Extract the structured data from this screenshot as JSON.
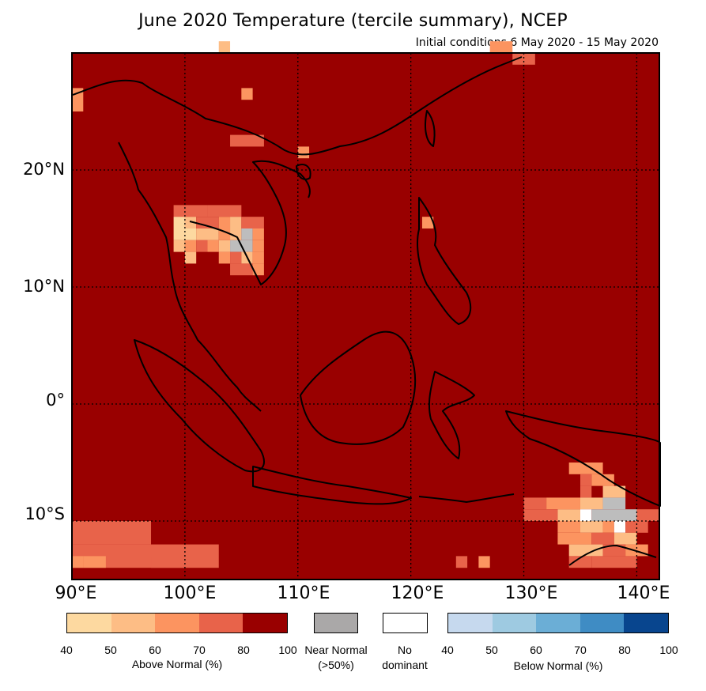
{
  "title": "June 2020 Temperature (tercile summary), NCEP",
  "subtitle": "Initial conditions 6 May 2020 - 15 May 2020",
  "map": {
    "lon_range": [
      90,
      142
    ],
    "lat_range": [
      -15,
      30
    ],
    "lat_labels": [
      "20°N",
      "10°N",
      "0°",
      "10°S"
    ],
    "lon_labels": [
      "90°E",
      "100°E",
      "110°E",
      "120°E",
      "130°E",
      "140°E"
    ],
    "gridlines": "dotted",
    "base_color": "#990000",
    "palette_above": [
      "#fdd9a0",
      "#fdbd85",
      "#fc9460",
      "#e8634a",
      "#990000"
    ],
    "near_normal_color": "#bdbdbd",
    "no_dominant_color": "#ffffff"
  },
  "legend": {
    "above": {
      "colors": [
        "#fdd9a0",
        "#fdbd85",
        "#fc9460",
        "#e8634a",
        "#990000"
      ],
      "ticks": [
        "40",
        "50",
        "60",
        "70",
        "80",
        "100"
      ],
      "caption": "Above Normal (%)"
    },
    "near_normal": {
      "color": "#aaa8a8",
      "caption_line1": "Near Normal",
      "caption_line2": "(>50%)"
    },
    "no_dominant": {
      "color": "#ffffff",
      "caption_line1": "No",
      "caption_line2": "dominant"
    },
    "below": {
      "colors": [
        "#c6d9ee",
        "#9ecae1",
        "#6baed6",
        "#3f8cc4",
        "#08458e"
      ],
      "ticks": [
        "40",
        "50",
        "60",
        "70",
        "80",
        "100"
      ],
      "caption": "Below Normal (%)"
    }
  }
}
